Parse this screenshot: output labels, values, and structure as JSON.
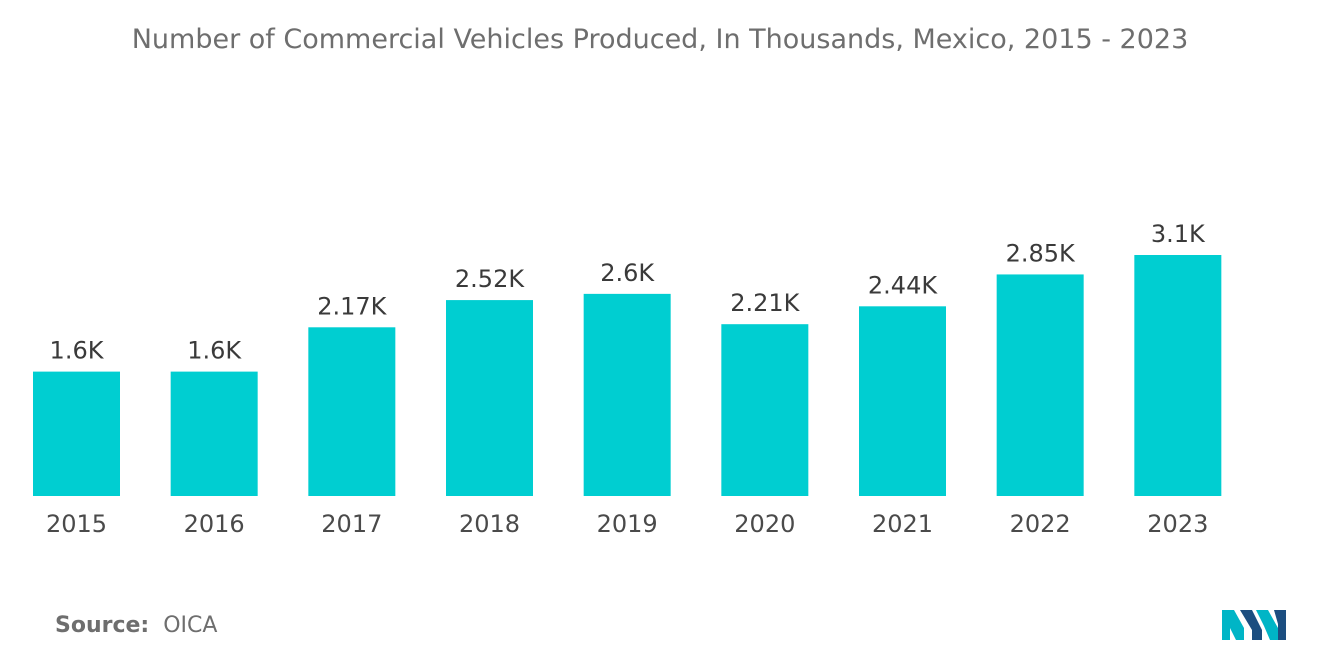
{
  "chart_data": {
    "type": "bar",
    "title": "Number of Commercial Vehicles Produced, In Thousands, Mexico, 2015 - 2023",
    "categories": [
      "2015",
      "2016",
      "2017",
      "2018",
      "2019",
      "2020",
      "2021",
      "2022",
      "2023"
    ],
    "values": [
      1.6,
      1.6,
      2.17,
      2.52,
      2.6,
      2.21,
      2.44,
      2.85,
      3.1
    ],
    "data_labels": [
      "1.6K",
      "1.6K",
      "2.17K",
      "2.52K",
      "2.6K",
      "2.21K",
      "2.44K",
      "2.85K",
      "3.1K"
    ],
    "xlabel": "",
    "ylabel": "",
    "ylim": [
      0,
      3.1
    ],
    "grid": false,
    "legend": "none",
    "bar_color": "#00ced1"
  },
  "source": {
    "label": "Source:",
    "value": "OICA"
  },
  "logo": {
    "icon": "mordor-logo-icon",
    "colors": [
      "#00b5c6",
      "#1c4e80"
    ]
  }
}
